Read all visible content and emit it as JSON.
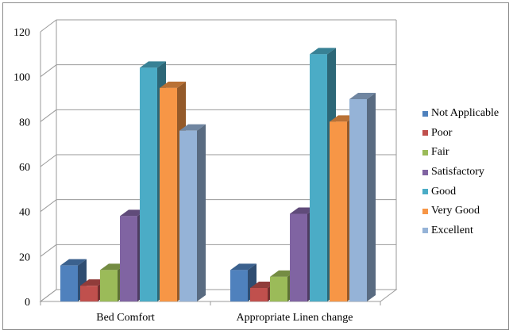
{
  "chart_data": {
    "type": "bar",
    "categories": [
      "Bed Comfort",
      "Appropriate Linen change"
    ],
    "series": [
      {
        "name": "Not Applicable",
        "values": [
          16,
          14
        ],
        "color": "#4f81bd"
      },
      {
        "name": "Poor",
        "values": [
          7,
          6
        ],
        "color": "#c0504d"
      },
      {
        "name": "Fair",
        "values": [
          14,
          11
        ],
        "color": "#9bbb59"
      },
      {
        "name": "Satisfactory",
        "values": [
          38,
          39
        ],
        "color": "#8064a2"
      },
      {
        "name": "Good",
        "values": [
          104,
          110
        ],
        "color": "#4bacc6"
      },
      {
        "name": "Very Good",
        "values": [
          95,
          80
        ],
        "color": "#f79646"
      },
      {
        "name": "Excellent",
        "values": [
          76,
          90
        ],
        "color": "#95b3d7"
      }
    ],
    "y_ticks": [
      "0",
      "20",
      "40",
      "60",
      "80",
      "100",
      "120"
    ],
    "ylim": [
      0,
      120
    ],
    "grid": true,
    "legend_position": "right",
    "three_d": true
  }
}
